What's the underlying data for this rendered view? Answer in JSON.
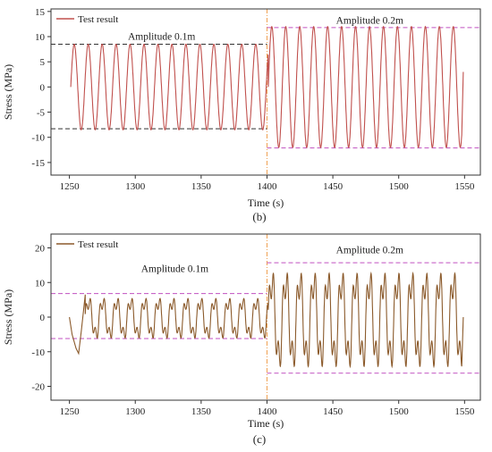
{
  "chart_data": [
    {
      "id": "b",
      "type": "line",
      "caption": "(b)",
      "xlabel": "Time (s)",
      "ylabel": "Stress (MPa)",
      "xlim": [
        1236,
        1562
      ],
      "ylim": [
        -17.5,
        15.5
      ],
      "xticks": [
        1250,
        1300,
        1350,
        1400,
        1450,
        1500,
        1550
      ],
      "yticks": [
        -15,
        -10,
        -5,
        0,
        5,
        10,
        15
      ],
      "legend": {
        "label": "Test result",
        "position": "top-left"
      },
      "line_color": "#c0504d",
      "divider_x": 1400,
      "divider_color": "#f0a050",
      "ref_lines": [
        {
          "x_from": 1236,
          "x_to": 1400,
          "y": 8.5,
          "color": "#333333"
        },
        {
          "x_from": 1236,
          "x_to": 1400,
          "y": -8.3,
          "color": "#333333"
        },
        {
          "x_from": 1400,
          "x_to": 1562,
          "y": 11.8,
          "color": "#c050c0"
        },
        {
          "x_from": 1400,
          "x_to": 1562,
          "y": -12.1,
          "color": "#c050c0"
        }
      ],
      "annotations": [
        {
          "text": "Amplitude 0.1m",
          "x": 1320,
          "y": 9.4
        },
        {
          "text": "Amplitude 0.2m",
          "x": 1478,
          "y": 12.6
        }
      ],
      "series": [
        {
          "pattern": "sine",
          "segments": [
            {
              "x0": 1251,
              "x1": 1401,
              "period": 10.6,
              "amplitude": 8.5,
              "start_phase": 0
            },
            {
              "x0": 1401,
              "x1": 1548,
              "period": 10.6,
              "amplitude": 12.0,
              "start_phase": 0
            }
          ],
          "tail_to": {
            "x": 1549,
            "y": 3
          }
        }
      ]
    },
    {
      "id": "c",
      "type": "line",
      "caption": "(c)",
      "xlabel": "Time (s)",
      "ylabel": "Stress (MPa)",
      "xlim": [
        1236,
        1562
      ],
      "ylim": [
        -24,
        24
      ],
      "xticks": [
        1250,
        1300,
        1350,
        1400,
        1450,
        1500,
        1550
      ],
      "yticks": [
        -20,
        -10,
        0,
        10,
        20
      ],
      "legend": {
        "label": "Test result",
        "position": "top-left"
      },
      "line_color": "#8b5a2b",
      "divider_x": 1400,
      "divider_color": "#f0a050",
      "ref_lines": [
        {
          "x_from": 1236,
          "x_to": 1400,
          "y": 6.8,
          "color": "#c050c0"
        },
        {
          "x_from": 1236,
          "x_to": 1400,
          "y": -6.2,
          "color": "#c050c0"
        },
        {
          "x_from": 1400,
          "x_to": 1562,
          "y": 15.7,
          "color": "#c050c0"
        },
        {
          "x_from": 1400,
          "x_to": 1562,
          "y": -16.2,
          "color": "#c050c0"
        }
      ],
      "annotations": [
        {
          "text": "Amplitude 0.1m",
          "x": 1330,
          "y": 13.0
        },
        {
          "text": "Amplitude 0.2m",
          "x": 1478,
          "y": 18.5
        }
      ],
      "series": [
        {
          "pattern": "double-peak",
          "segments": [
            {
              "x0": 1262,
              "x1": 1401,
              "period": 10.6,
              "amplitude": 6.8,
              "start_phase": 0
            },
            {
              "x0": 1401,
              "x1": 1548,
              "period": 10.6,
              "amplitude": 16.0,
              "start_phase": 0
            }
          ],
          "lead_in": [
            [
              1250,
              0
            ],
            [
              1252,
              -5
            ],
            [
              1255,
              -9
            ],
            [
              1257,
              -10.5
            ],
            [
              1259,
              -4
            ],
            [
              1262,
              6.5
            ]
          ],
          "tail_to": {
            "x": 1549,
            "y": 0
          }
        }
      ]
    }
  ]
}
